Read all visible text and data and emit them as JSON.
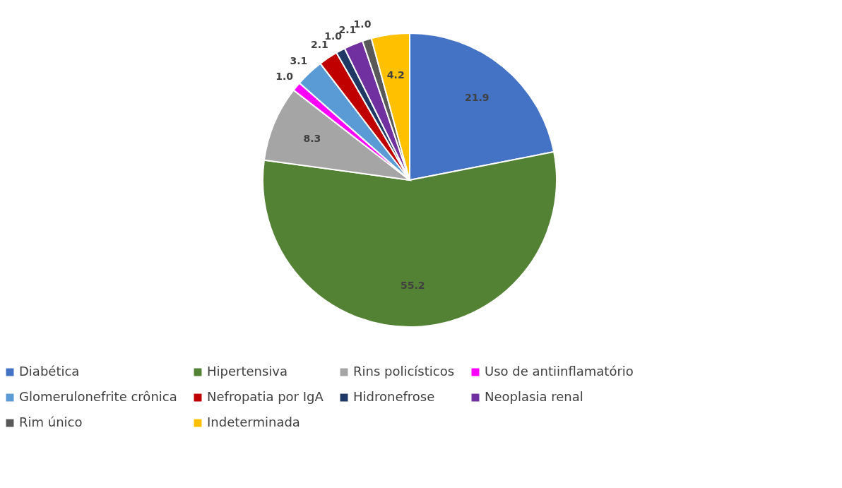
{
  "chart_data": {
    "type": "pie",
    "categories": [
      "Diabética",
      "Hipertensiva",
      "Rins policísticos",
      "Uso de antiinflamatório",
      "Glomerulonefrite crônica",
      "Nefropatia por IgA",
      "Hidronefrose",
      "Neoplasia renal",
      "Rim único",
      "Indeterminada"
    ],
    "values": [
      21.9,
      55.2,
      8.3,
      1.0,
      3.1,
      2.1,
      1.0,
      2.1,
      1.0,
      4.2
    ],
    "value_labels": [
      "21.9",
      "55.2",
      "8.3",
      "1.0",
      "3.1",
      "2.1",
      "1.0",
      "2.1",
      "1.0",
      "4.2"
    ],
    "colors": [
      "#4472c4",
      "#548235",
      "#a5a5a5",
      "#ff00ff",
      "#5b9bd5",
      "#c00000",
      "#203864",
      "#7030a0",
      "#595959",
      "#ffc000"
    ],
    "legend": "bottom"
  }
}
